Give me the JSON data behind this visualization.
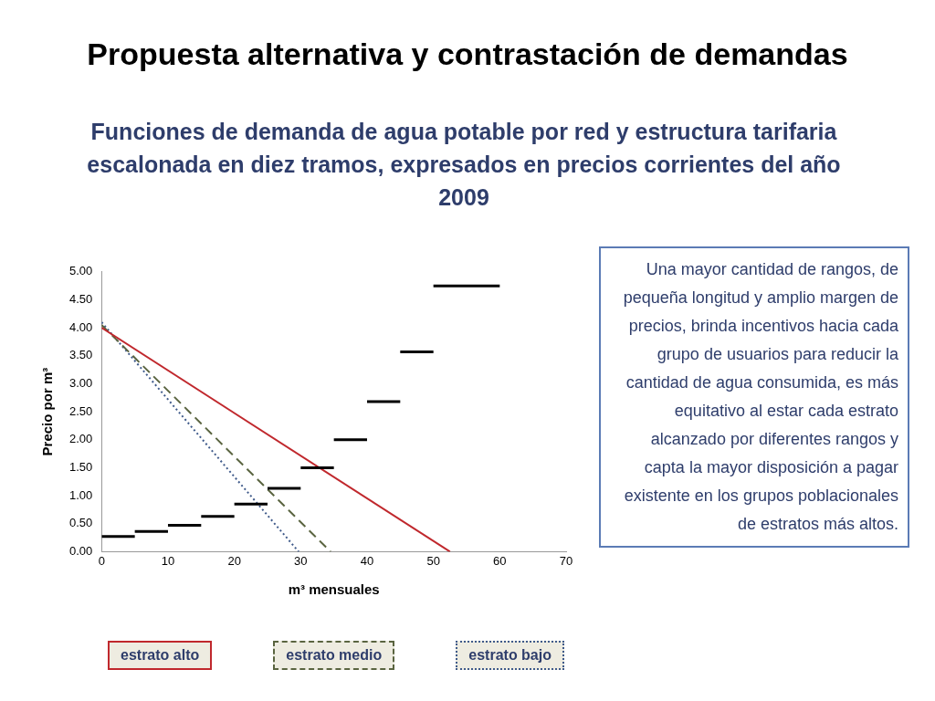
{
  "chart_data": {
    "type": "line",
    "title": "Propuesta alternativa y contrastación de demandas",
    "subtitle": "Funciones de demanda de agua potable por red y estructura tarifaria escalonada en diez tramos, expresados en precios corrientes del año 2009",
    "xlabel": "m³ mensuales",
    "ylabel": "Precio por m³",
    "xlim": [
      0,
      70
    ],
    "xticks": [
      0,
      10,
      20,
      30,
      40,
      50,
      60,
      70
    ],
    "ylim": [
      0,
      5
    ],
    "yticks": [
      {
        "value": 0,
        "label": "0.00"
      },
      {
        "value": 0.5,
        "label": "0.50"
      },
      {
        "value": 1,
        "label": "1.00"
      },
      {
        "value": 1.5,
        "label": "1.50"
      },
      {
        "value": 2,
        "label": "2.00"
      },
      {
        "value": 2.5,
        "label": "2.50"
      },
      {
        "value": 3,
        "label": "3.00"
      },
      {
        "value": 3.5,
        "label": "3.50"
      },
      {
        "value": 4,
        "label": "4.00"
      },
      {
        "value": 4.5,
        "label": "4.50"
      },
      {
        "value": 5,
        "label": "5.00"
      }
    ],
    "grid": false,
    "legend": "bottom",
    "marker": "none",
    "series": [
      {
        "x": [
          0,
          5
        ],
        "values": [
          0.27,
          0.27
        ],
        "color": "#000000",
        "line_style": "solid"
      },
      {
        "x": [
          5,
          10
        ],
        "values": [
          0.36,
          0.36
        ],
        "color": "#000000",
        "line_style": "solid"
      },
      {
        "x": [
          10,
          15
        ],
        "values": [
          0.47,
          0.47
        ],
        "color": "#000000",
        "line_style": "solid"
      },
      {
        "x": [
          15,
          20
        ],
        "values": [
          0.63,
          0.63
        ],
        "color": "#000000",
        "line_style": "solid"
      },
      {
        "x": [
          20,
          25
        ],
        "values": [
          0.85,
          0.85
        ],
        "color": "#000000",
        "line_style": "solid"
      },
      {
        "x": [
          25,
          30
        ],
        "values": [
          1.13,
          1.13
        ],
        "color": "#000000",
        "line_style": "solid"
      },
      {
        "x": [
          30,
          35
        ],
        "values": [
          1.5,
          1.5
        ],
        "color": "#000000",
        "line_style": "solid"
      },
      {
        "x": [
          35,
          40
        ],
        "values": [
          2.0,
          2.0
        ],
        "color": "#000000",
        "line_style": "solid"
      },
      {
        "x": [
          40,
          45
        ],
        "values": [
          2.68,
          2.68
        ],
        "color": "#000000",
        "line_style": "solid"
      },
      {
        "x": [
          45,
          50
        ],
        "values": [
          3.57,
          3.57
        ],
        "color": "#000000",
        "line_style": "solid"
      },
      {
        "x": [
          50,
          60
        ],
        "values": [
          4.75,
          4.75
        ],
        "color": "#000000",
        "line_style": "solid"
      },
      {
        "name": "estrato alto",
        "x": [
          0,
          52.5
        ],
        "values": [
          4.0,
          0
        ],
        "color": "#c0282d",
        "line_style": "solid"
      },
      {
        "name": "estrato medio",
        "x": [
          0,
          34.5
        ],
        "values": [
          4.05,
          0
        ],
        "color": "#5a6440",
        "line_style": "dashed"
      },
      {
        "name": "estrato bajo",
        "x": [
          0,
          29.7
        ],
        "values": [
          4.1,
          0
        ],
        "color": "#3f5a8a",
        "line_style": "dotted"
      }
    ],
    "annotations": [
      "Una mayor cantidad de rangos, de pequeña longitud y amplio margen de precios, brinda incentivos hacia cada grupo de usuarios para reducir la cantidad de agua consumida, es más equitativo al estar cada estrato alcanzado por diferentes rangos y capta la mayor disposición a pagar existente en los grupos poblacionales de estratos más altos."
    ]
  }
}
